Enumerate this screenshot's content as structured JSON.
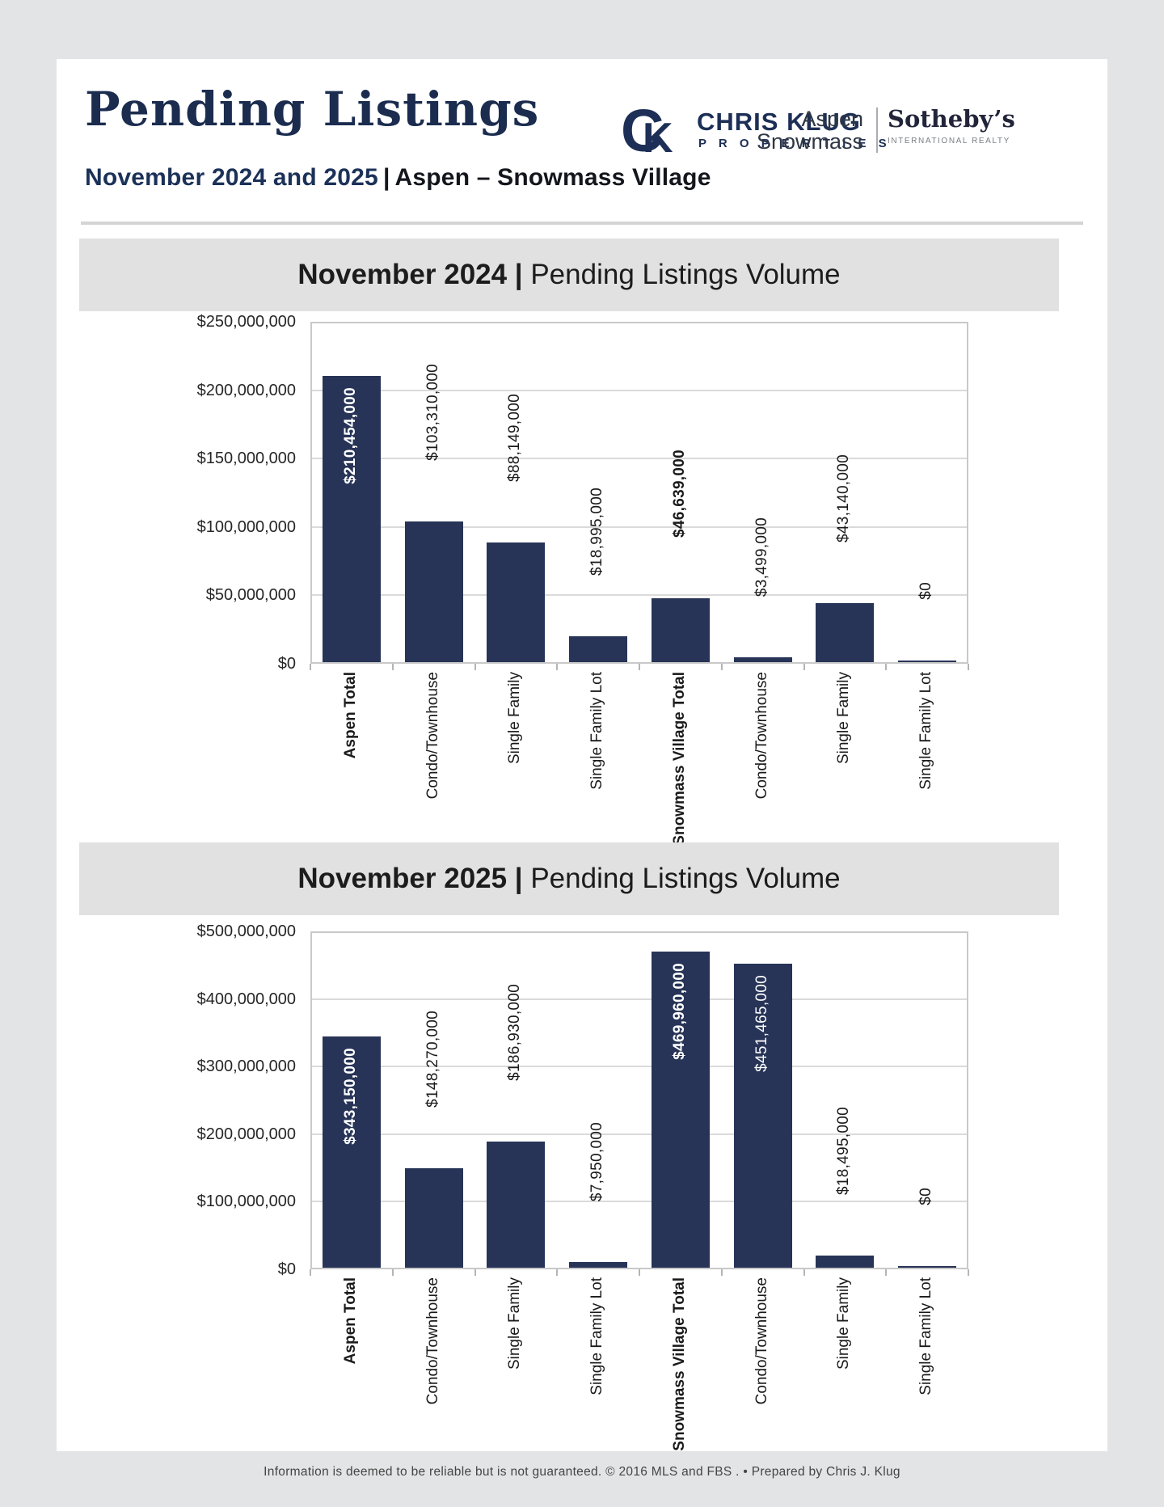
{
  "page": {
    "title": "Pending Listings",
    "subtitle": {
      "period": "November 2024 and 2025",
      "separator": "|",
      "region": "Aspen – Snowmass Village"
    },
    "footer": "Information is deemed to be reliable but is not guaranteed. © 2016 MLS and FBS . • Prepared by Chris J. Klug"
  },
  "logos": {
    "chris_klug": {
      "monogram_c": "C",
      "monogram_k": "K",
      "name": "CHRIS KLUG",
      "tagline": "P R O P E R T I E S"
    },
    "aspen_snowmass": {
      "line1": "Aspen",
      "line2": "Snowmass"
    },
    "sothebys": {
      "name": "Sotheby’s",
      "tagline": "INTERNATIONAL REALTY"
    }
  },
  "colors": {
    "bar": "#273457",
    "brand_navy": "#1d2f56",
    "titlebar_bg": "#e1e1e1",
    "canvas_bg": "#e3e4e5",
    "gridline": "#dadada",
    "plot_border": "#c9c9c9",
    "value_label_dark": "#1a1a1a",
    "value_label_light": "#ffffff"
  },
  "chart_data": [
    {
      "type": "bar",
      "title": {
        "bold": "November 2024 |",
        "regular": " Pending Listings Volume"
      },
      "categories": [
        "Aspen Total",
        "Condo/Townhouse",
        "Single Family",
        "Single Family Lot",
        "Snowmass Village Total",
        "Condo/Townhouse",
        "Single Family",
        "Single Family Lot"
      ],
      "values": [
        210454000,
        103310000,
        88149000,
        18995000,
        46639000,
        3499000,
        43140000,
        0
      ],
      "value_labels": [
        "$210,454,000",
        "$103,310,000",
        "$88,149,000",
        "$18,995,000",
        "$46,639,000",
        "$3,499,000",
        "$43,140,000",
        "$0"
      ],
      "ylim": [
        0,
        250000000
      ],
      "ytick_labels": [
        "$250,000,000",
        "$200,000,000",
        "$150,000,000",
        "$100,000,000",
        "$50,000,000",
        "$0"
      ],
      "grid": true,
      "legend": "none",
      "emphasized_categories": [
        0,
        4
      ],
      "inside_label_indices": [
        0
      ],
      "bold_value_label_indices": [
        0,
        4
      ]
    },
    {
      "type": "bar",
      "title": {
        "bold": "November 2025 |",
        "regular": " Pending Listings Volume"
      },
      "categories": [
        "Aspen Total",
        "Condo/Townhouse",
        "Single Family",
        "Single Family Lot",
        "Snowmass Village Total",
        "Condo/Townhouse",
        "Single Family",
        "Single Family Lot"
      ],
      "values": [
        343150000,
        148270000,
        186930000,
        7950000,
        469960000,
        451465000,
        18495000,
        0
      ],
      "value_labels": [
        "$343,150,000",
        "$148,270,000",
        "$186,930,000",
        "$7,950,000",
        "$469,960,000",
        "$451,465,000",
        "$18,495,000",
        "$0"
      ],
      "ylim": [
        0,
        500000000
      ],
      "ytick_labels": [
        "$500,000,000",
        "$400,000,000",
        "$300,000,000",
        "$200,000,000",
        "$100,000,000",
        "$0"
      ],
      "grid": true,
      "legend": "none",
      "emphasized_categories": [
        0,
        4
      ],
      "inside_label_indices": [
        0,
        4,
        5
      ],
      "bold_value_label_indices": [
        0,
        4
      ]
    }
  ]
}
